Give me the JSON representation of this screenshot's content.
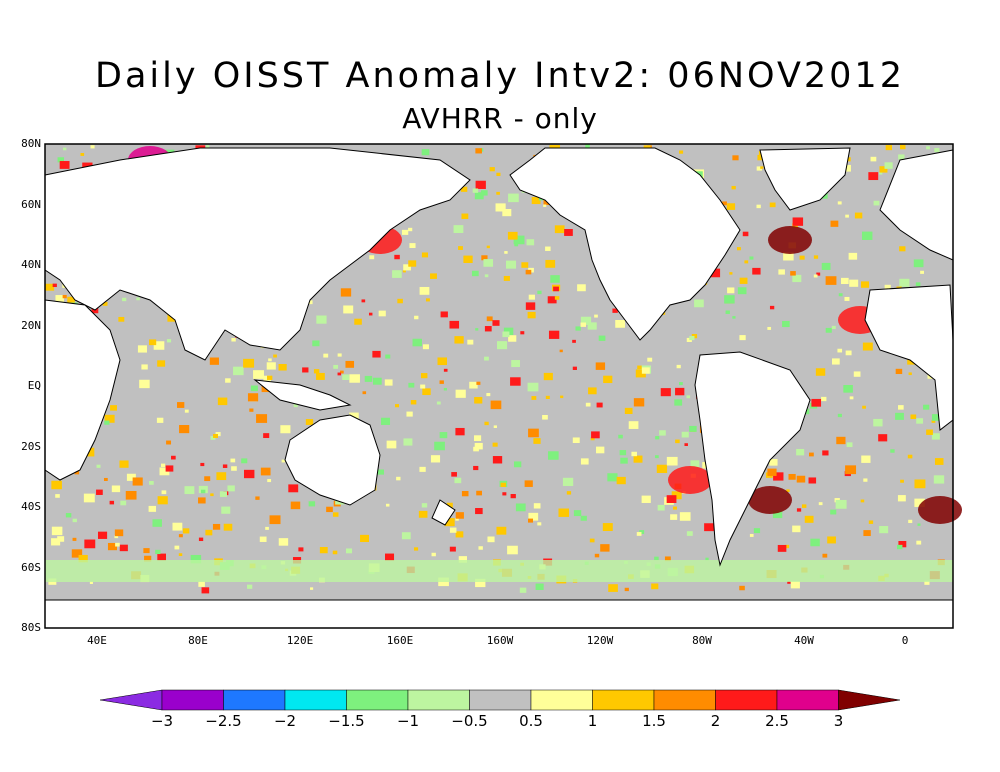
{
  "title": "Daily OISST Anomaly Intv2: 06NOV2012",
  "subtitle": "AVHRR - only",
  "map": {
    "lat_labels": [
      "80N",
      "60N",
      "40N",
      "20N",
      "EQ",
      "20S",
      "40S",
      "60S",
      "80S"
    ],
    "lon_labels": [
      "40E",
      "80E",
      "120E",
      "160E",
      "160W",
      "120W",
      "80W",
      "40W",
      "0"
    ],
    "land_color": "#ffffff",
    "no_anomaly_color": "#c0c0c0"
  },
  "colorbar": {
    "labels": [
      "-3",
      "-2.5",
      "-2",
      "-1.5",
      "-1",
      "-0.5",
      "0.5",
      "1",
      "1.5",
      "2",
      "2.5",
      "3"
    ],
    "colors": [
      "#8b2be2",
      "#9a00cc",
      "#1e78ff",
      "#00e8f0",
      "#7ef07e",
      "#bdf5a0",
      "#c0c0c0",
      "#ffff99",
      "#ffc800",
      "#ff8c00",
      "#ff1a1a",
      "#e0008c",
      "#800000"
    ]
  }
}
